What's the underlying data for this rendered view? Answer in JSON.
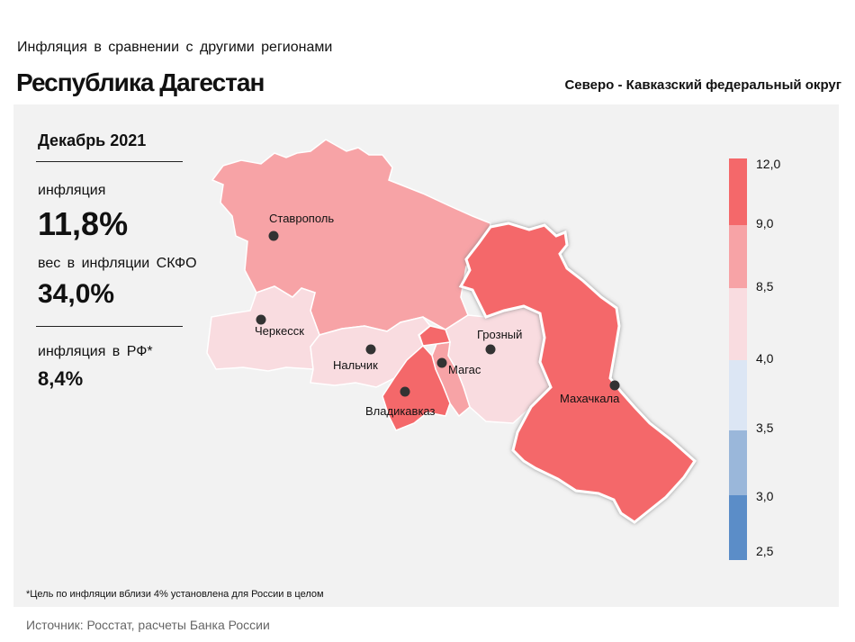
{
  "header": {
    "subtitle": "Инфляция  в сравнении  с другими  регионами",
    "region": "Республика Дагестан",
    "district": "Северо - Кавказский федеральный округ"
  },
  "stats": {
    "period": "Декабрь 2021",
    "inflation_label": "инфляция",
    "inflation_value": "11,8%",
    "weight_label": "вес в инфляции  СКФО",
    "weight_value": "34,0%",
    "rf_label": "инфляция  в РФ*",
    "rf_value": "8,4%"
  },
  "legend": {
    "ticks": [
      "12,0",
      "9,0",
      "8,5",
      "4,0",
      "3,5",
      "3,0",
      "2,5"
    ],
    "colors": [
      "#f4686a",
      "#f7a3a6",
      "#f9dce0",
      "#dce6f4",
      "#9ab7da",
      "#5b8dc8"
    ]
  },
  "cities": [
    {
      "name": "Ставрополь"
    },
    {
      "name": "Черкесск"
    },
    {
      "name": "Нальчик"
    },
    {
      "name": "Владикавказ"
    },
    {
      "name": "Магас"
    },
    {
      "name": "Грозный"
    },
    {
      "name": "Махачкала"
    }
  ],
  "footnote": "*Цель по инфляции вблизи 4% установлена для России в целом",
  "source": "Источник: Росстат, расчеты Банка России"
}
